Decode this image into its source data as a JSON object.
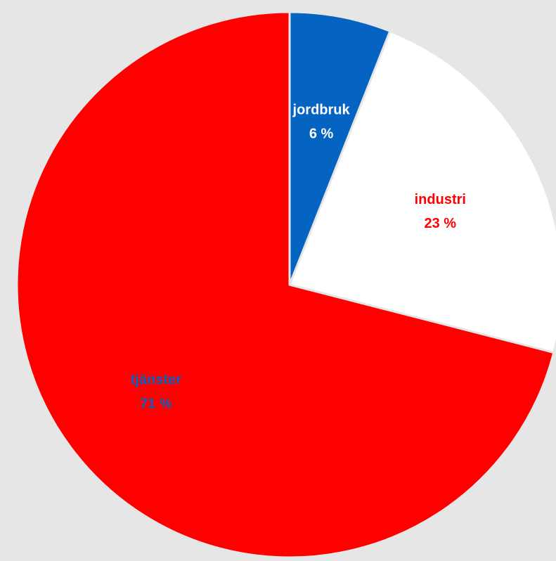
{
  "chart_data": {
    "type": "pie",
    "start_angle_deg": 0,
    "direction": "clockwise",
    "slices": [
      {
        "label": "jordbruk",
        "value": 6,
        "value_label": "6 %",
        "color": "#0563c1",
        "label_color": "#ffffff"
      },
      {
        "label": "industri",
        "value": 23,
        "value_label": "23 %",
        "color": "#ffffff",
        "label_color": "#ff0000"
      },
      {
        "label": "tjänster",
        "value": 71,
        "value_label": "71 %",
        "color": "#ff0000",
        "label_color": "#0563c1"
      }
    ],
    "slice_border_color": "#e6e6e6",
    "title": "",
    "legend": "none"
  }
}
